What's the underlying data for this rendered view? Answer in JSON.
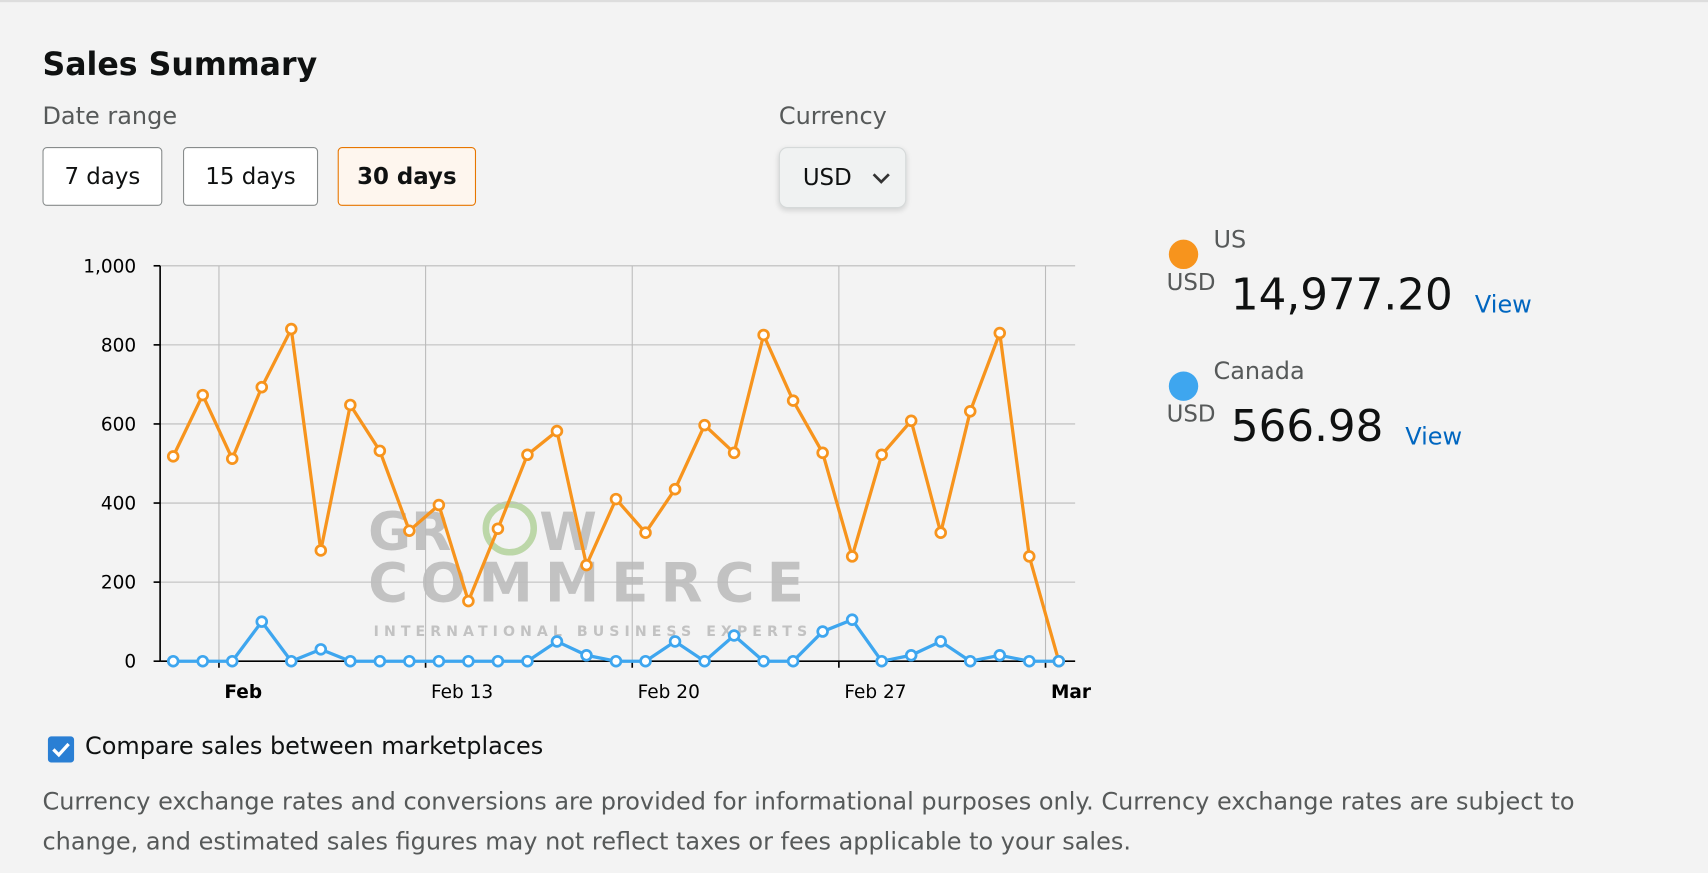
{
  "header": {
    "title": "Sales Summary"
  },
  "date_range": {
    "label": "Date range",
    "options": [
      "7 days",
      "15 days",
      "30 days"
    ],
    "selected": 2
  },
  "currency": {
    "label": "Currency",
    "value": "USD"
  },
  "chart_data": {
    "type": "line",
    "x": [
      "Feb 4",
      "Feb 5",
      "Feb 6",
      "Feb 7",
      "Feb 8",
      "Feb 9",
      "Feb 10",
      "Feb 11",
      "Feb 12",
      "Feb 13",
      "Feb 14",
      "Feb 15",
      "Feb 16",
      "Feb 17",
      "Feb 18",
      "Feb 19",
      "Feb 20",
      "Feb 21",
      "Feb 22",
      "Feb 23",
      "Feb 24",
      "Feb 25",
      "Feb 26",
      "Feb 27",
      "Feb 28",
      "Mar 1",
      "Mar 2",
      "Mar 3",
      "Mar 4",
      "Mar 5",
      "Mar 6"
    ],
    "series": [
      {
        "name": "US",
        "color": "#f7941d",
        "values": [
          518,
          673,
          512,
          693,
          840,
          280,
          648,
          532,
          330,
          395,
          152,
          335,
          522,
          582,
          243,
          410,
          325,
          435,
          597,
          527,
          825,
          659,
          527,
          265,
          522,
          608,
          325,
          632,
          830,
          265,
          0
        ]
      },
      {
        "name": "Canada",
        "color": "#3ea6ef",
        "values": [
          0,
          0,
          0,
          100,
          0,
          30,
          0,
          0,
          0,
          0,
          0,
          0,
          0,
          50,
          15,
          0,
          0,
          50,
          0,
          65,
          0,
          0,
          75,
          105,
          0,
          15,
          50,
          0,
          15,
          0,
          0
        ]
      }
    ],
    "ylim": [
      0,
      1000
    ],
    "yticks": [
      0,
      200,
      400,
      600,
      800,
      {
        "value": 1000,
        "label": "1,000"
      }
    ],
    "xticks": [
      {
        "value": "Feb 6",
        "label": "Feb"
      },
      {
        "value": "Feb 13",
        "label": "Feb 13"
      },
      {
        "value": "Feb 20",
        "label": "Feb 20"
      },
      {
        "value": "Feb 27",
        "label": "Feb 27"
      },
      {
        "value": "Mar 6",
        "label": "Mar"
      }
    ],
    "grid": true
  },
  "summary": [
    {
      "name": "US",
      "currency": "USD",
      "amount": "14,977.20",
      "link": "View"
    },
    {
      "name": "Canada",
      "currency": "USD",
      "amount": "566.98",
      "link": "View"
    }
  ],
  "watermark": [
    "GR",
    "W",
    "COMMERCE",
    "INTERNATIONAL BUSINESS EXPERTS"
  ],
  "compare": {
    "label": "Compare sales between marketplaces",
    "checked": true
  },
  "disclaimer": "Currency exchange rates and conversions are provided for informational purposes only. Currency exchange rates are subject to change, and estimated sales figures may not reflect taxes or fees applicable to your sales."
}
